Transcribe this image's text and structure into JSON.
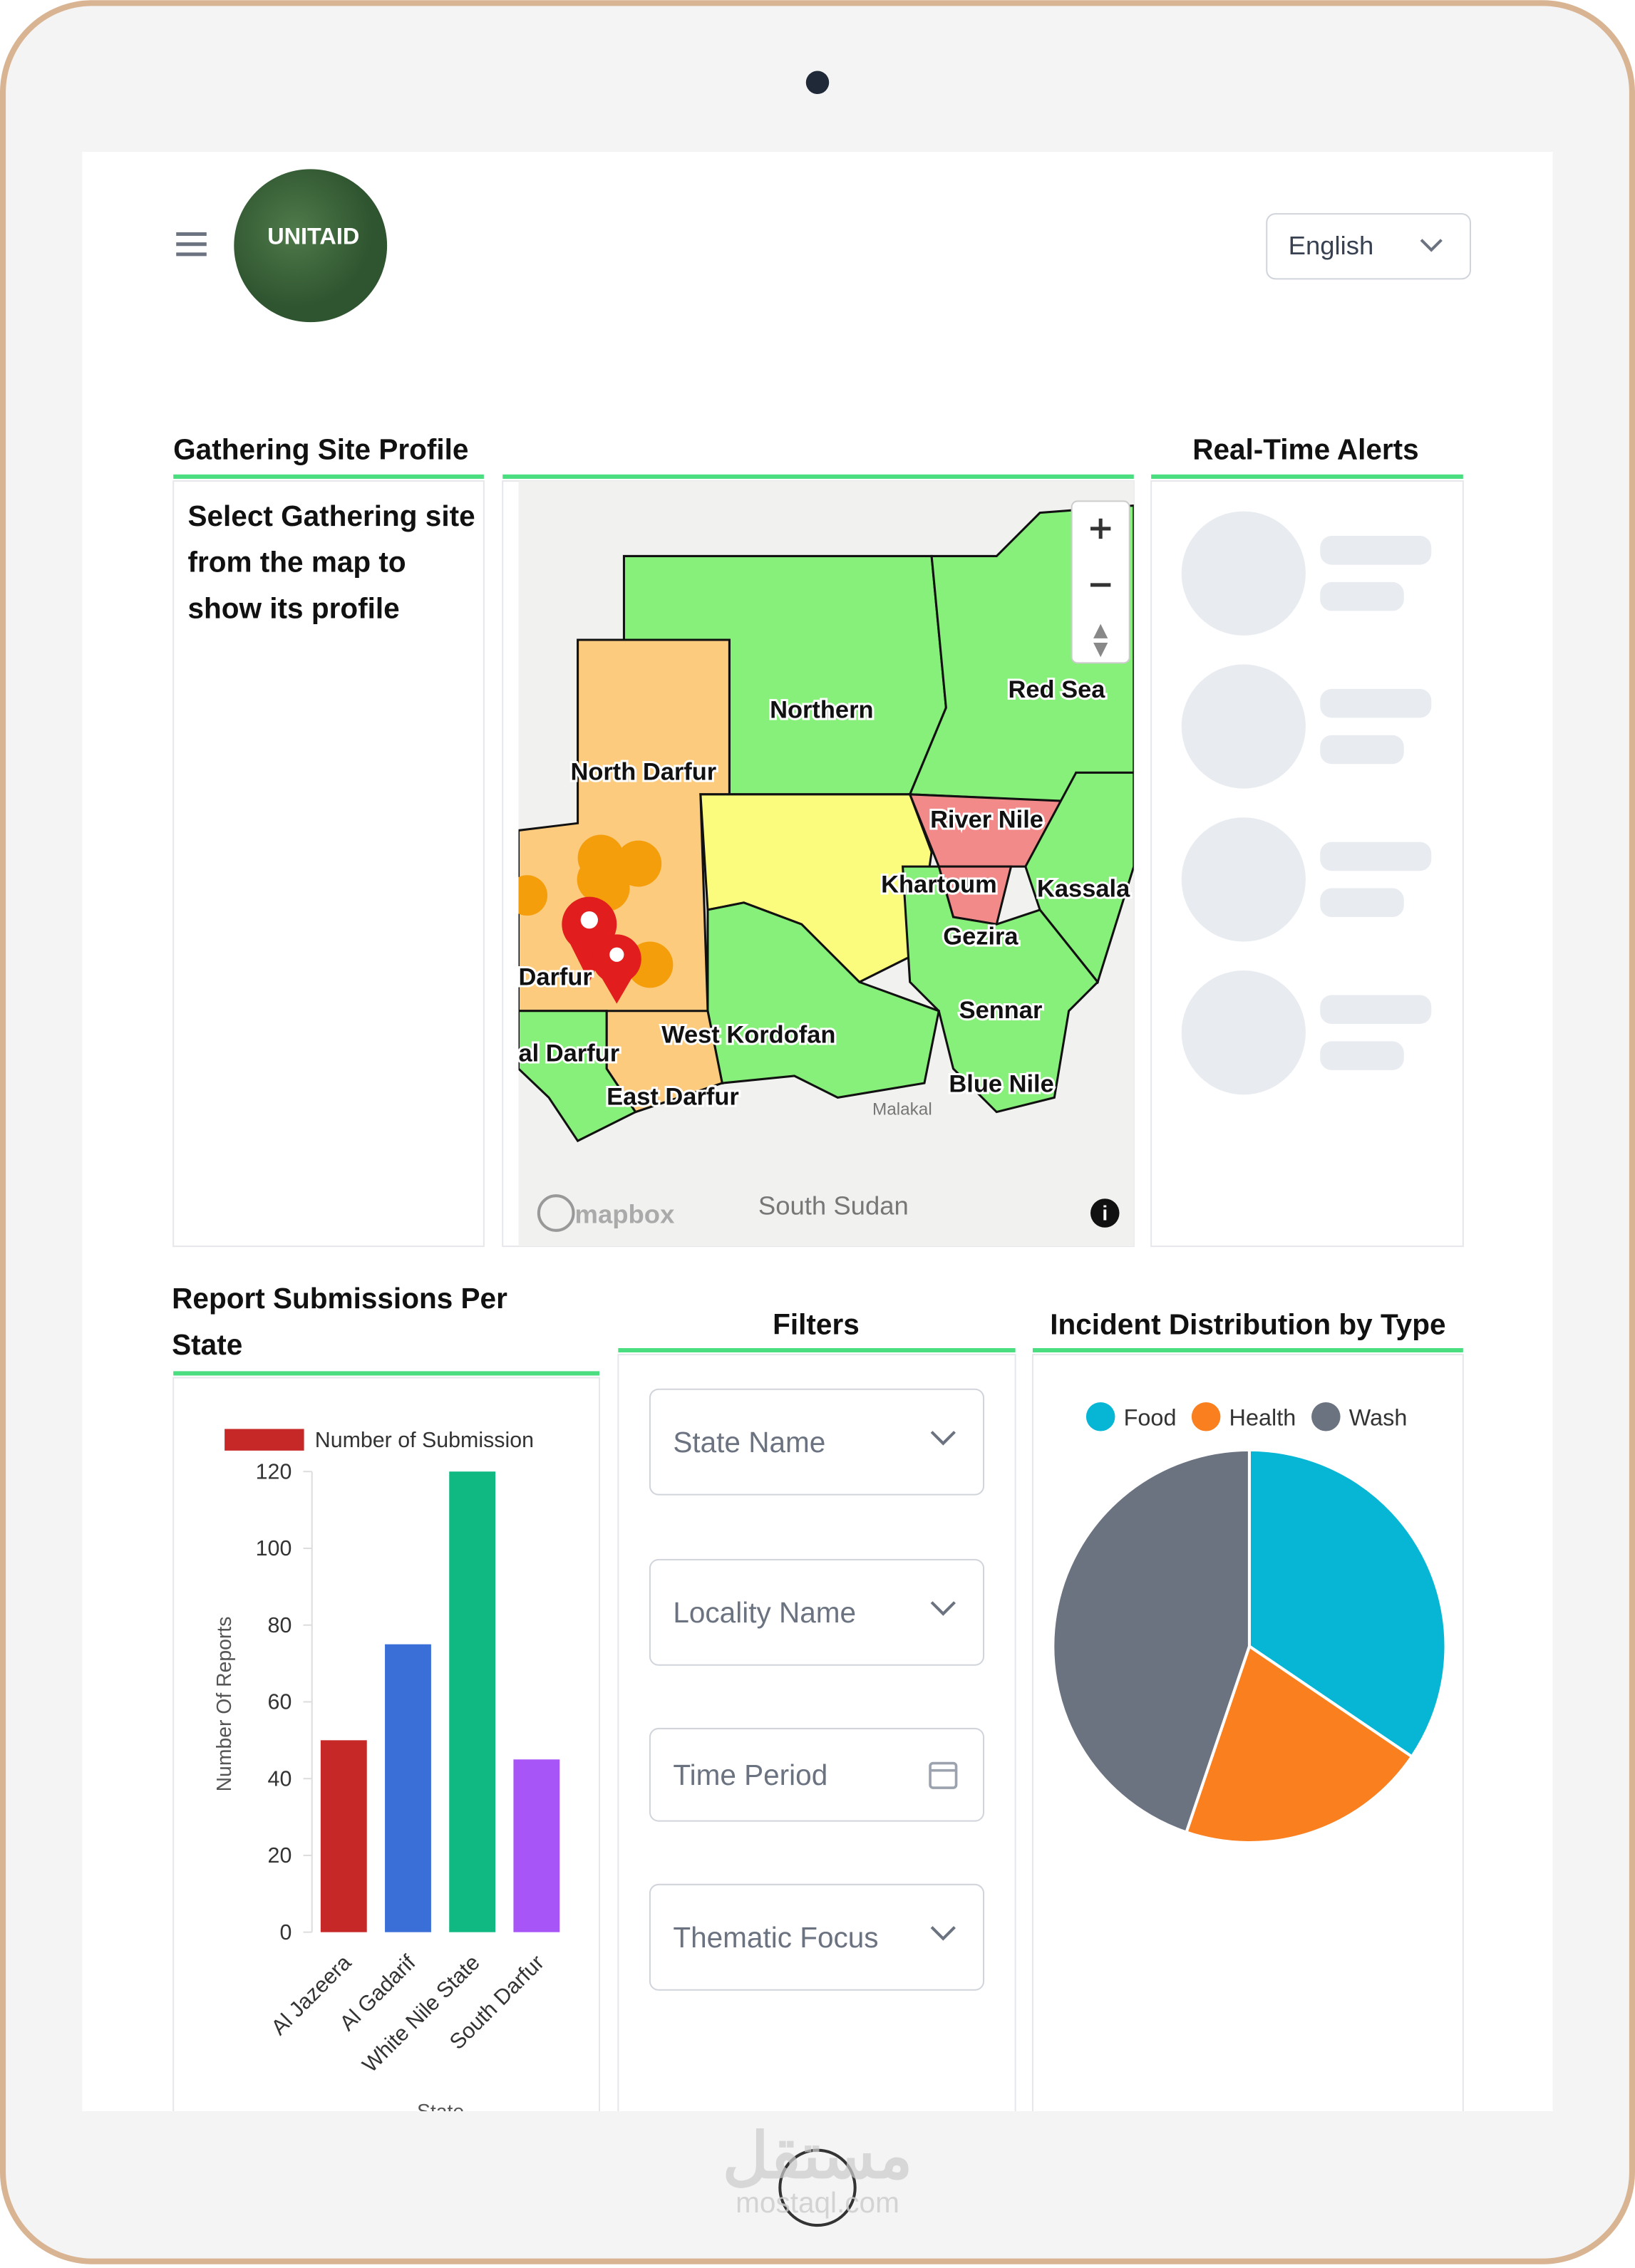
{
  "header": {
    "logo_text": "UNITAID",
    "language": "English"
  },
  "gathering_site_profile": {
    "title": "Gathering Site Profile",
    "message": "Select Gathering site from the map to show its profile"
  },
  "map": {
    "labels": [
      "Northern",
      "Red Sea",
      "North Darfur",
      "River Nile",
      "Khartoum",
      "Kassala",
      "Gezira",
      "Sennar",
      "West Kordofan",
      "Blue Nile",
      "East Darfur",
      "al Darfur",
      "Darfur",
      "Malakal",
      "South Sudan"
    ],
    "attribution": "mapbox"
  },
  "real_time_alerts": {
    "title": "Real-Time Alerts"
  },
  "filters": {
    "title": "Filters",
    "fields": [
      "State Name",
      "Locality Name",
      "Time Period",
      "Thematic Focus"
    ]
  },
  "watermark": {
    "arabic": "مستقل",
    "latin": "mostaql.com"
  },
  "chart_data": [
    {
      "type": "bar",
      "title": "Report Submissions Per State",
      "x_label": "State",
      "y_label": "Number Of Reports",
      "categories": [
        "Al Jazeera",
        "Al Gadarif",
        "White Nile State",
        "South Darfur"
      ],
      "series": [
        {
          "name": "Number of Submission",
          "colors": [
            "#c62828",
            "#3b6fd8",
            "#10b981",
            "#a855f7"
          ],
          "values": [
            50,
            75,
            120,
            45
          ]
        }
      ],
      "ylim": [
        0,
        120
      ],
      "yticks": [
        0,
        20,
        40,
        60,
        80,
        100,
        120
      ]
    },
    {
      "type": "pie",
      "title": "Incident Distribution by Type",
      "categories": [
        "Food",
        "Health",
        "Wash"
      ],
      "values": [
        34.5,
        20.7,
        44.8
      ],
      "colors": [
        "#06b6d4",
        "#f97f1f",
        "#6b7280"
      ]
    }
  ]
}
